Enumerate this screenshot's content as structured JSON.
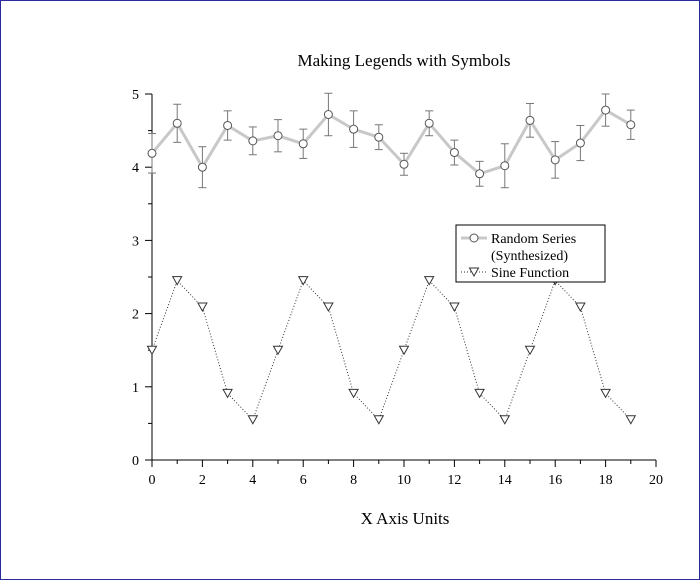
{
  "chart_data": {
    "type": "line",
    "title": "Making Legends with Symbols",
    "xlabel": "X Axis Units",
    "ylabel": "",
    "xlim": [
      0,
      20
    ],
    "ylim": [
      0,
      5
    ],
    "x_ticks": [
      0,
      2,
      4,
      6,
      8,
      10,
      12,
      14,
      16,
      18,
      20
    ],
    "y_ticks": [
      0,
      1,
      2,
      3,
      4,
      5
    ],
    "grid": false,
    "legend_position": "center-right",
    "x": [
      0,
      1,
      2,
      3,
      4,
      5,
      6,
      7,
      8,
      9,
      10,
      11,
      12,
      13,
      14,
      15,
      16,
      17,
      18,
      19
    ],
    "series": [
      {
        "name": "Random Series",
        "name_line2": "(Synthesized)",
        "marker": "circle",
        "line_style": "solid",
        "color": "#c8c8c8",
        "values": [
          4.19,
          4.6,
          4.0,
          4.57,
          4.36,
          4.43,
          4.32,
          4.72,
          4.52,
          4.41,
          4.04,
          4.6,
          4.2,
          3.91,
          4.02,
          4.64,
          4.1,
          4.33,
          4.78,
          4.58
        ],
        "error": [
          0.27,
          0.26,
          0.28,
          0.2,
          0.19,
          0.22,
          0.2,
          0.29,
          0.25,
          0.17,
          0.15,
          0.17,
          0.17,
          0.17,
          0.3,
          0.23,
          0.25,
          0.24,
          0.22,
          0.2
        ]
      },
      {
        "name": "Sine Function",
        "marker": "triangle-down",
        "line_style": "dotted",
        "color": "#333333",
        "values": [
          1.5,
          2.45,
          2.09,
          0.91,
          0.55,
          1.5,
          2.45,
          2.09,
          0.91,
          0.55,
          1.5,
          2.45,
          2.09,
          0.91,
          0.55,
          1.5,
          2.45,
          2.09,
          0.91,
          0.55
        ]
      }
    ]
  }
}
